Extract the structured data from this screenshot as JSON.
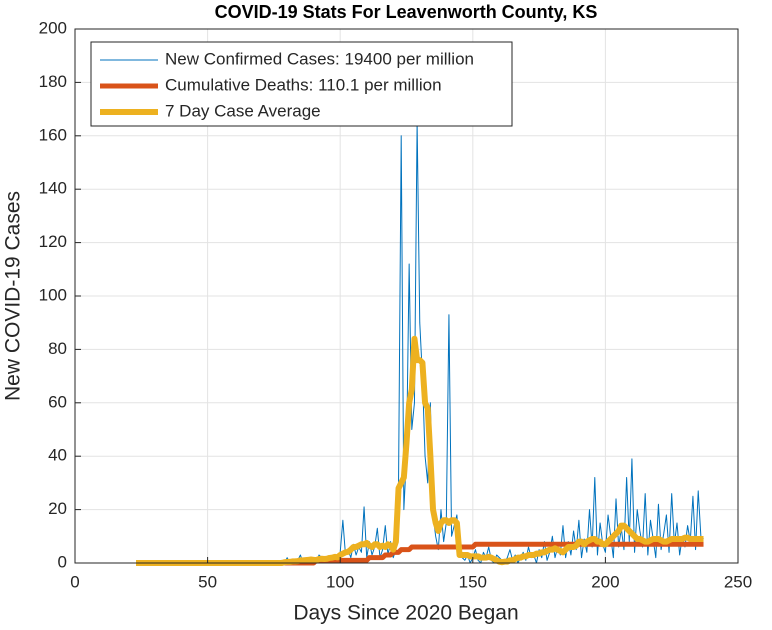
{
  "chart_data": {
    "type": "line",
    "title": "COVID-19 Stats For Leavenworth County, KS",
    "xlabel": "Days Since 2020 Began",
    "ylabel": "New COVID-19 Cases",
    "xlim": [
      0,
      250
    ],
    "xticks": [
      0,
      50,
      100,
      150,
      200,
      250
    ],
    "ylim": [
      0,
      200
    ],
    "yticks": [
      0,
      20,
      40,
      60,
      80,
      100,
      120,
      140,
      160,
      180,
      200
    ],
    "grid": true,
    "legend": "northwest",
    "x": [
      23,
      24,
      25,
      26,
      27,
      28,
      29,
      30,
      31,
      32,
      33,
      34,
      35,
      36,
      37,
      38,
      39,
      40,
      41,
      42,
      43,
      44,
      45,
      46,
      47,
      48,
      49,
      50,
      51,
      52,
      53,
      54,
      55,
      56,
      57,
      58,
      59,
      60,
      61,
      62,
      63,
      64,
      65,
      66,
      67,
      68,
      69,
      70,
      71,
      72,
      73,
      74,
      75,
      76,
      77,
      78,
      79,
      80,
      81,
      82,
      83,
      84,
      85,
      86,
      87,
      88,
      89,
      90,
      91,
      92,
      93,
      94,
      95,
      96,
      97,
      98,
      99,
      100,
      101,
      102,
      103,
      104,
      105,
      106,
      107,
      108,
      109,
      110,
      111,
      112,
      113,
      114,
      115,
      116,
      117,
      118,
      119,
      120,
      121,
      122,
      123,
      124,
      125,
      126,
      127,
      128,
      129,
      130,
      131,
      132,
      133,
      134,
      135,
      136,
      137,
      138,
      139,
      140,
      141,
      142,
      143,
      144,
      145,
      146,
      147,
      148,
      149,
      150,
      151,
      152,
      153,
      154,
      155,
      156,
      157,
      158,
      159,
      160,
      161,
      162,
      163,
      164,
      165,
      166,
      167,
      168,
      169,
      170,
      171,
      172,
      173,
      174,
      175,
      176,
      177,
      178,
      179,
      180,
      181,
      182,
      183,
      184,
      185,
      186,
      187,
      188,
      189,
      190,
      191,
      192,
      193,
      194,
      195,
      196,
      197,
      198,
      199,
      200,
      201,
      202,
      203,
      204,
      205,
      206,
      207,
      208,
      209,
      210,
      211,
      212,
      213,
      214,
      215,
      216,
      217,
      218,
      219,
      220,
      221,
      222,
      223,
      224,
      225,
      226,
      227,
      228,
      229,
      230,
      231,
      232,
      233,
      234,
      235,
      236,
      237
    ],
    "series": [
      {
        "name": "New Confirmed Cases: 19400 per million",
        "color": "#0072bd",
        "width": 1,
        "values": [
          0,
          0,
          0,
          0,
          0,
          0,
          0,
          0,
          0,
          0,
          0,
          0,
          0,
          0,
          0,
          0,
          0,
          0,
          0,
          0,
          0,
          0,
          0,
          0,
          0,
          0,
          0,
          0,
          0,
          0,
          0,
          0,
          0,
          0,
          0,
          0,
          0,
          0,
          0,
          0,
          0,
          0,
          0,
          0,
          0,
          0,
          0,
          0,
          0,
          0,
          0,
          0,
          0,
          0,
          0,
          1,
          0,
          2,
          0,
          1,
          0,
          1,
          3,
          0,
          1,
          2,
          0,
          1,
          0,
          3,
          2,
          1,
          0,
          2,
          1,
          3,
          2,
          4,
          16,
          3,
          5,
          2,
          7,
          3,
          6,
          4,
          21,
          2,
          8,
          3,
          6,
          13,
          2,
          5,
          14,
          3,
          8,
          2,
          5,
          30,
          160,
          20,
          40,
          112,
          50,
          60,
          165,
          90,
          70,
          40,
          30,
          60,
          18,
          10,
          5,
          20,
          8,
          15,
          93,
          10,
          14,
          18,
          3,
          2,
          1,
          3,
          0,
          2,
          5,
          1,
          0,
          4,
          2,
          6,
          1,
          0,
          3,
          2,
          1,
          0,
          2,
          5,
          1,
          3,
          0,
          2,
          4,
          1,
          6,
          2,
          3,
          0,
          5,
          2,
          8,
          1,
          4,
          10,
          2,
          6,
          3,
          14,
          2,
          8,
          3,
          12,
          5,
          16,
          2,
          9,
          4,
          20,
          6,
          32,
          3,
          15,
          7,
          4,
          18,
          10,
          2,
          24,
          6,
          13,
          5,
          32,
          8,
          39,
          4,
          20,
          12,
          6,
          26,
          3,
          16,
          9,
          2,
          22,
          5,
          11,
          18,
          4,
          26,
          7,
          15,
          3,
          10,
          6,
          14,
          8,
          25,
          5,
          27,
          10,
          9
        ]
      },
      {
        "name": "Cumulative Deaths: 110.1 per million",
        "color": "#d95319",
        "width": 5,
        "values": [
          0,
          0,
          0,
          0,
          0,
          0,
          0,
          0,
          0,
          0,
          0,
          0,
          0,
          0,
          0,
          0,
          0,
          0,
          0,
          0,
          0,
          0,
          0,
          0,
          0,
          0,
          0,
          0,
          0,
          0,
          0,
          0,
          0,
          0,
          0,
          0,
          0,
          0,
          0,
          0,
          0,
          0,
          0,
          0,
          0,
          0,
          0,
          0,
          0,
          0,
          0,
          0,
          0,
          0,
          0,
          0,
          0,
          0,
          0,
          0,
          0,
          0,
          0,
          0,
          0,
          0,
          0,
          0,
          1,
          1,
          1,
          1,
          1,
          1,
          1,
          1,
          1,
          1,
          1,
          1,
          1,
          1,
          1,
          1,
          1,
          1,
          1,
          1,
          2,
          2,
          2,
          2,
          2,
          2,
          3,
          3,
          3,
          4,
          4,
          4,
          5,
          5,
          5,
          5,
          6,
          6,
          6,
          6,
          6,
          6,
          6,
          6,
          6,
          6,
          6,
          6,
          6,
          6,
          6,
          6,
          6,
          6,
          6,
          6,
          6,
          6,
          6,
          6,
          7,
          7,
          7,
          7,
          7,
          7,
          7,
          7,
          7,
          7,
          7,
          7,
          7,
          7,
          7,
          7,
          7,
          7,
          7,
          7,
          7,
          7,
          7,
          7,
          7,
          7,
          7,
          7,
          7,
          7,
          7,
          7,
          7,
          7,
          7,
          7,
          7,
          7,
          7,
          7,
          7,
          7,
          7,
          7,
          7,
          7,
          7,
          7,
          7,
          7,
          7,
          7,
          7,
          7,
          7,
          7,
          7,
          7,
          7,
          7,
          7,
          7,
          7,
          7,
          7,
          7,
          7,
          7,
          7,
          7,
          7,
          7,
          7,
          7,
          7,
          7,
          7,
          7,
          7,
          7,
          7,
          7,
          7,
          7,
          7,
          7,
          7
        ]
      },
      {
        "name": "7 Day Case Average",
        "color": "#edb120",
        "width": 6,
        "values": [
          0,
          0,
          0,
          0,
          0,
          0,
          0,
          0,
          0,
          0,
          0,
          0,
          0,
          0,
          0,
          0,
          0,
          0,
          0,
          0,
          0,
          0,
          0,
          0,
          0,
          0,
          0,
          0,
          0,
          0,
          0,
          0,
          0,
          0,
          0,
          0,
          0,
          0,
          0,
          0,
          0,
          0,
          0,
          0,
          0,
          0,
          0,
          0,
          0,
          0,
          0,
          0,
          0,
          0,
          0,
          0,
          0.3,
          0.4,
          0.4,
          0.6,
          0.6,
          0.7,
          1,
          1,
          1.1,
          1.2,
          1.3,
          1.2,
          1.1,
          1.5,
          1.6,
          1.5,
          1.6,
          1.9,
          2,
          2.3,
          2.1,
          3,
          3.5,
          4,
          4.2,
          5,
          6,
          6,
          6.5,
          7,
          7,
          7.5,
          6.5,
          6,
          7,
          7,
          6,
          6.5,
          6,
          7,
          6.5,
          5,
          8,
          28,
          30,
          32,
          45,
          60,
          65,
          84,
          76,
          76,
          75,
          60,
          58,
          40,
          20,
          15,
          12,
          15,
          16,
          16,
          15,
          16,
          16,
          15,
          3,
          3,
          3,
          3,
          2.5,
          2.5,
          2.5,
          2.5,
          2,
          2,
          2,
          2.3,
          2,
          1.5,
          1,
          0.5,
          0.3,
          0.5,
          0.5,
          1,
          1,
          1.5,
          2,
          2,
          2.5,
          2.5,
          3,
          3,
          3,
          3.5,
          3.5,
          4,
          4,
          4.5,
          5,
          5,
          5.5,
          5,
          4.5,
          4,
          5,
          6,
          6,
          6,
          6.5,
          8,
          8,
          7,
          8,
          8.5,
          9,
          9,
          8,
          8,
          7,
          7,
          8,
          9,
          10,
          11,
          12,
          14,
          14,
          13,
          12,
          11,
          10,
          9,
          9,
          8.5,
          8,
          8,
          8.5,
          9,
          9,
          9,
          8.5,
          8,
          8,
          8.5,
          9,
          9,
          9,
          9,
          9,
          9.5,
          9.5,
          9,
          9,
          9,
          9,
          9,
          9
        ]
      }
    ]
  }
}
